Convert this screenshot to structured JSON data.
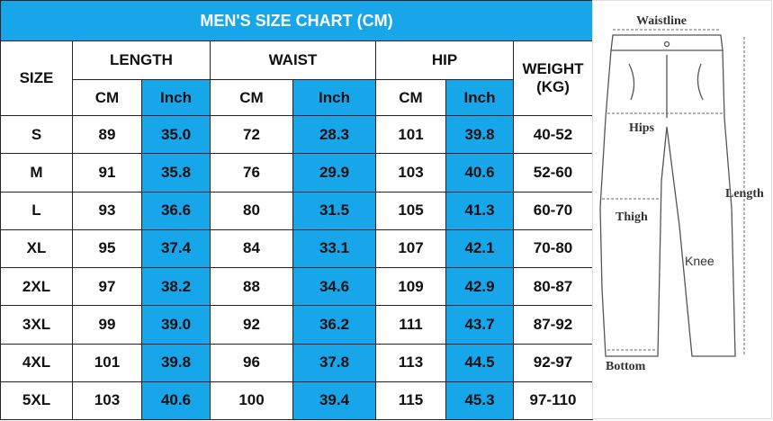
{
  "table": {
    "title": "MEN'S SIZE CHART (CM)",
    "size_header": "SIZE",
    "groups": [
      "LENGTH",
      "WAIST",
      "HIP"
    ],
    "units": [
      "CM",
      "Inch"
    ],
    "weight_header": [
      "WEIGHT",
      "(KG)"
    ],
    "rows": [
      [
        "S",
        "89",
        "35.0",
        "72",
        "28.3",
        "101",
        "39.8",
        "40-52"
      ],
      [
        "M",
        "91",
        "35.8",
        "76",
        "29.9",
        "103",
        "40.6",
        "52-60"
      ],
      [
        "L",
        "93",
        "36.6",
        "80",
        "31.5",
        "105",
        "41.3",
        "60-70"
      ],
      [
        "XL",
        "95",
        "37.4",
        "84",
        "33.1",
        "107",
        "42.1",
        "70-80"
      ],
      [
        "2XL",
        "97",
        "38.2",
        "88",
        "34.6",
        "109",
        "42.9",
        "80-87"
      ],
      [
        "3XL",
        "99",
        "39.0",
        "92",
        "36.2",
        "111",
        "43.7",
        "87-92"
      ],
      [
        "4XL",
        "101",
        "39.8",
        "96",
        "37.8",
        "113",
        "44.5",
        "92-97"
      ],
      [
        "5XL",
        "103",
        "40.6",
        "100",
        "39.4",
        "115",
        "45.3",
        "97-110"
      ]
    ]
  },
  "diagram": {
    "waistline": "Waistline",
    "hips": "Hips",
    "thigh": "Thigh",
    "knee": "Knee",
    "bottom": "Bottom",
    "length": "Length"
  }
}
